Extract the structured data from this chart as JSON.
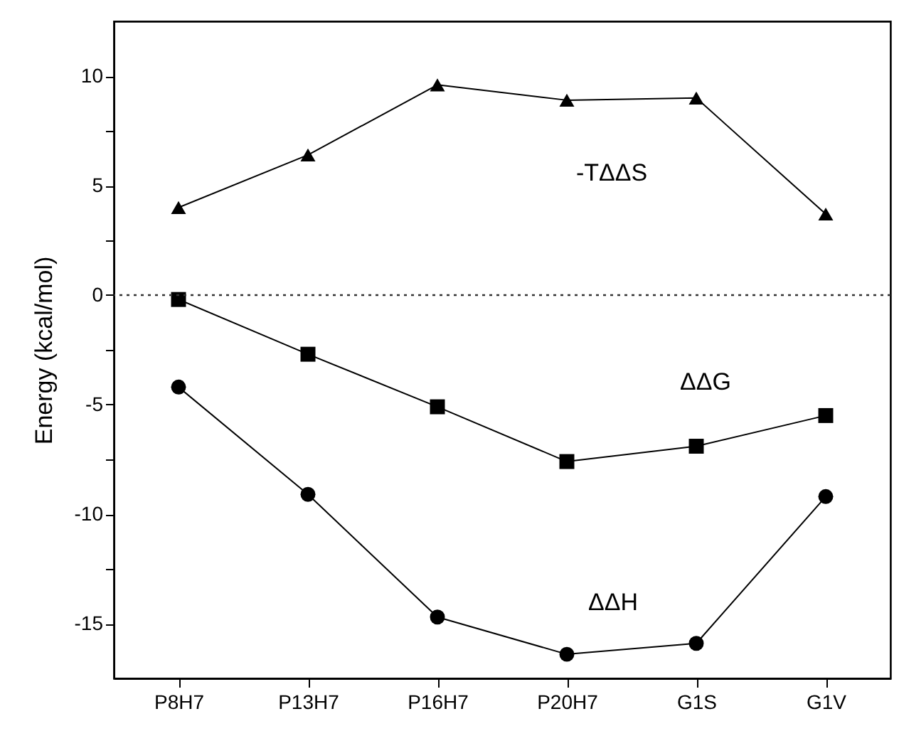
{
  "chart_data": {
    "type": "line",
    "ylabel": "Energy (kcal/mol)",
    "categories": [
      "P8H7",
      "P13H7",
      "P16H7",
      "P20H7",
      "G1S",
      "G1V"
    ],
    "series": [
      {
        "name": "-TΔΔS",
        "color": "#000000",
        "marker": "triangle",
        "values": [
          4.0,
          6.4,
          9.6,
          8.9,
          9.0,
          3.7
        ]
      },
      {
        "name": "ΔΔG",
        "color": "#000000",
        "marker": "square",
        "values": [
          -0.2,
          -2.7,
          -5.1,
          -7.6,
          -6.9,
          -5.5
        ]
      },
      {
        "name": "ΔΔH",
        "color": "#000000",
        "marker": "circle",
        "values": [
          -4.2,
          -9.1,
          -14.7,
          -16.4,
          -15.9,
          -9.2
        ]
      }
    ],
    "ylim": [
      -17.5,
      12.5
    ],
    "yticks": [
      -15,
      {
        "value": -12.5,
        "label": null
      },
      -10,
      {
        "value": -7.5,
        "label": null
      },
      -5,
      {
        "value": -2.5,
        "label": null
      },
      0,
      {
        "value": 2.5,
        "label": null
      },
      5,
      {
        "value": 7.5,
        "label": null
      },
      10
    ],
    "ref_lines": [
      {
        "axis": "y",
        "value": 0,
        "line_style": "dotted",
        "color": "#333333"
      }
    ],
    "grid": false,
    "line_style": "solid"
  }
}
